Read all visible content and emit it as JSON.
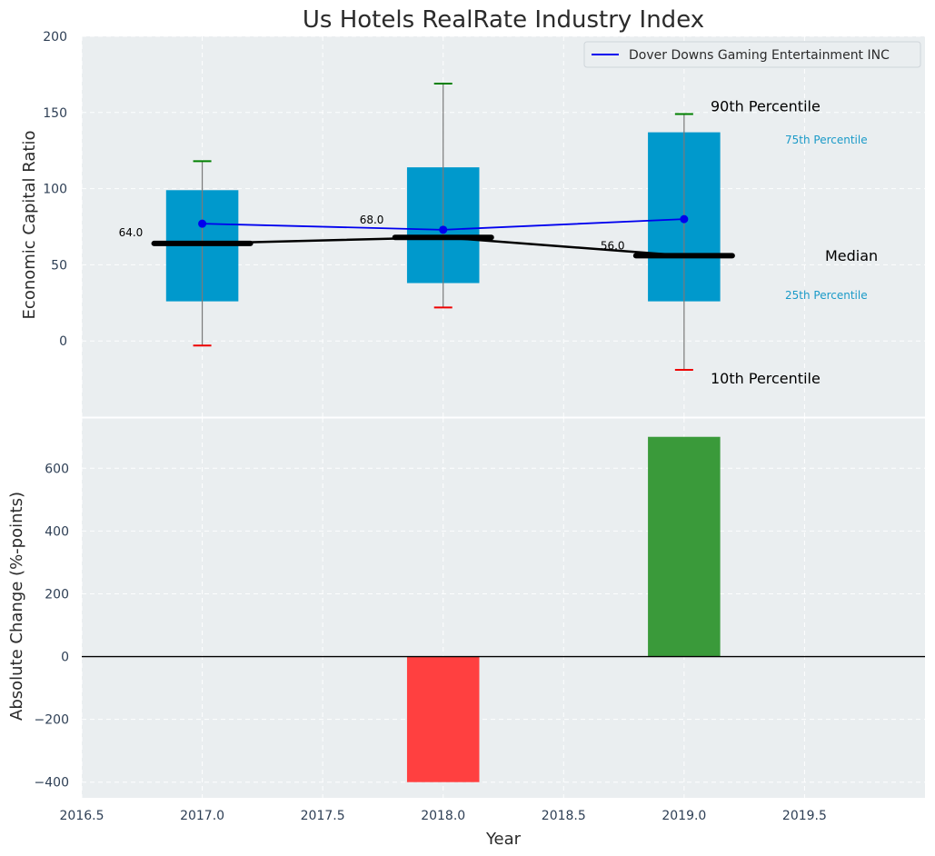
{
  "chart_data": [
    {
      "type": "box",
      "title": "Us Hotels RealRate Industry Index",
      "ylabel": "Economic Capital Ratio",
      "xlim": [
        2016.5,
        2020.0
      ],
      "ylim": [
        -50,
        200
      ],
      "yticks": [
        0,
        50,
        100,
        150,
        200
      ],
      "grid": true,
      "legend": {
        "position": "top-right",
        "entries": [
          "Dover Downs Gaming Entertainment INC"
        ]
      },
      "colors": {
        "box": "#0099cc",
        "company_line": "#0000ee",
        "median": "#000000",
        "p90": "#008000",
        "p10": "#ee0000",
        "background": "#eaeef0"
      },
      "boxes": [
        {
          "x": 2017.0,
          "p10": -3,
          "p25": 26,
          "median": 64,
          "p75": 99,
          "p90": 118
        },
        {
          "x": 2018.0,
          "p10": 22,
          "p25": 38,
          "median": 68,
          "p75": 114,
          "p90": 169
        },
        {
          "x": 2019.0,
          "p10": -19,
          "p25": 26,
          "median": 56,
          "p75": 137,
          "p90": 149
        }
      ],
      "median_labels": [
        "64.0",
        "68.0",
        "56.0"
      ],
      "company_series": {
        "name": "Dover Downs Gaming Entertainment INC",
        "x": [
          2017,
          2018,
          2019
        ],
        "y": [
          77,
          73,
          80
        ]
      },
      "annotations": {
        "p90": "90th Percentile",
        "p75": "75th Percentile",
        "median": "Median",
        "p25": "25th Percentile",
        "p10": "10th Percentile"
      }
    },
    {
      "type": "bar",
      "xlabel": "Year",
      "ylabel": "Absolute Change (%-points)",
      "xlim": [
        2016.5,
        2020.0
      ],
      "ylim": [
        -450,
        760
      ],
      "yticks": [
        -400,
        -200,
        0,
        200,
        400,
        600
      ],
      "xticks": [
        2016.5,
        2017.0,
        2017.5,
        2018.0,
        2018.5,
        2019.0,
        2019.5
      ],
      "bars": [
        {
          "x": 2018.0,
          "value": -400,
          "color": "#ff4040"
        },
        {
          "x": 2019.0,
          "value": 700,
          "color": "#3a9a3a"
        }
      ],
      "colors": {
        "zero_line": "#000000",
        "background": "#eaeef0"
      }
    }
  ]
}
